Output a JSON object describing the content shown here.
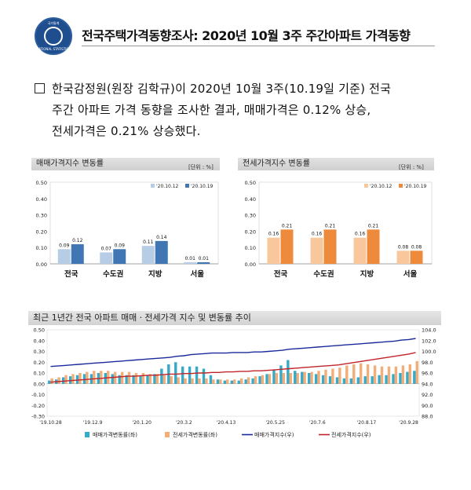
{
  "header": {
    "title": "전국주택가격동향조사: 2020년 10월 3주 주간아파트 가격동향",
    "logo_text_top": "국가통계",
    "logo_text_bottom": "NATIONAL STATISTICS"
  },
  "summary": {
    "line1": "한국감정원(원장 김학규)이 2020년 10월 3주(10.19일 기준) 전국",
    "line2": "주간 아파트 가격 동향을 조사한 결과, 매매가격은 0.12% 상승,",
    "line3": "전세가격은 0.21% 상승했다."
  },
  "colors": {
    "sale_light": "#b7cde6",
    "sale_dark": "#3f76b3",
    "jeonse_light": "#f8c89c",
    "jeonse_dark": "#ee8a3c",
    "sale_index": "#1a2a9c",
    "jeonse_index": "#c0242a",
    "sale_rate_bar": "#36aac9",
    "jeonse_rate_bar": "#f2ad79"
  },
  "chart_data": [
    {
      "type": "bar",
      "title": "매매가격지수 변동률",
      "unit": "[단위 : %]",
      "categories": [
        "전국",
        "수도권",
        "지방",
        "서울"
      ],
      "series": [
        {
          "name": "'20.10.12",
          "values": [
            0.09,
            0.07,
            0.11,
            0.01
          ]
        },
        {
          "name": "'20.10.19",
          "values": [
            0.12,
            0.09,
            0.14,
            0.01
          ]
        }
      ],
      "yticks": [
        "0.00",
        "0.10",
        "0.20",
        "0.30",
        "0.40",
        "0.50"
      ],
      "ylim": [
        0,
        0.5
      ],
      "legend": "top-right"
    },
    {
      "type": "bar",
      "title": "전세가격지수 변동률",
      "unit": "[단위 : %]",
      "categories": [
        "전국",
        "수도권",
        "지방",
        "서울"
      ],
      "series": [
        {
          "name": "'20.10.12",
          "values": [
            0.16,
            0.16,
            0.16,
            0.08
          ]
        },
        {
          "name": "'20.10.19",
          "values": [
            0.21,
            0.21,
            0.21,
            0.08
          ]
        }
      ],
      "yticks": [
        "0.00",
        "0.10",
        "0.20",
        "0.30",
        "0.40",
        "0.50"
      ],
      "ylim": [
        0,
        0.5
      ],
      "legend": "top-right"
    },
    {
      "type": "bar+line",
      "title": "최근 1년간 전국 아파트 매매ㆍ전세가격 지수 및 변동률 추이",
      "x_ticks": [
        "'19.10.28",
        "'19.12.9",
        "'20.1.20",
        "'20.3.2",
        "'20.4.13",
        "'20.5.25",
        "'20.7.6",
        "'20.8.17",
        "'20.9.28"
      ],
      "ylim_left": [
        -0.3,
        0.5
      ],
      "yticks_left": [
        "-0.30",
        "-0.20",
        "-0.10",
        "0.00",
        "0.10",
        "0.20",
        "0.30",
        "0.40",
        "0.50"
      ],
      "ylim_right": [
        88.0,
        104.0
      ],
      "yticks_right": [
        "88.0",
        "90.0",
        "92.0",
        "94.0",
        "96.0",
        "98.0",
        "100.0",
        "102.0",
        "104.0"
      ],
      "legend": "bottom",
      "series": [
        {
          "name": "매매가격변동률(좌)",
          "kind": "bar",
          "axis": "left",
          "values": [
            0.03,
            0.04,
            0.06,
            0.07,
            0.08,
            0.09,
            0.09,
            0.1,
            0.1,
            0.09,
            0.08,
            0.08,
            0.08,
            0.07,
            0.08,
            0.09,
            0.14,
            0.18,
            0.2,
            0.16,
            0.16,
            0.16,
            0.14,
            0.08,
            0.04,
            0.03,
            0.03,
            0.03,
            0.04,
            0.05,
            0.07,
            0.09,
            0.13,
            0.17,
            0.22,
            0.12,
            0.11,
            0.1,
            0.09,
            0.08,
            0.07,
            0.06,
            0.05,
            0.05,
            0.06,
            0.07,
            0.07,
            0.08,
            0.08,
            0.09,
            0.1,
            0.11,
            0.12
          ]
        },
        {
          "name": "전세가격변동률(좌)",
          "kind": "bar",
          "axis": "left",
          "values": [
            0.05,
            0.06,
            0.08,
            0.09,
            0.1,
            0.11,
            0.12,
            0.12,
            0.12,
            0.11,
            0.11,
            0.11,
            0.1,
            0.1,
            0.09,
            0.09,
            0.08,
            0.07,
            0.06,
            0.05,
            0.05,
            0.05,
            0.05,
            0.04,
            0.04,
            0.04,
            0.04,
            0.05,
            0.06,
            0.07,
            0.08,
            0.09,
            0.1,
            0.1,
            0.1,
            0.1,
            0.11,
            0.11,
            0.12,
            0.13,
            0.14,
            0.15,
            0.17,
            0.18,
            0.19,
            0.18,
            0.17,
            0.16,
            0.16,
            0.16,
            0.17,
            0.18,
            0.21
          ]
        },
        {
          "name": "매매가격지수(우)",
          "kind": "line",
          "axis": "right",
          "values": [
            97.2,
            97.3,
            97.4,
            97.5,
            97.6,
            97.7,
            97.8,
            97.9,
            98.0,
            98.1,
            98.2,
            98.3,
            98.4,
            98.5,
            98.6,
            98.7,
            98.8,
            98.9,
            99.1,
            99.2,
            99.4,
            99.5,
            99.6,
            99.7,
            99.7,
            99.7,
            99.8,
            99.8,
            99.8,
            99.9,
            99.9,
            100.0,
            100.1,
            100.2,
            100.4,
            100.5,
            100.6,
            100.7,
            100.8,
            100.9,
            101.0,
            101.1,
            101.2,
            101.3,
            101.4,
            101.5,
            101.6,
            101.7,
            101.8,
            101.9,
            102.1,
            102.2,
            102.4
          ]
        },
        {
          "name": "전세가격지수(우)",
          "kind": "line",
          "axis": "right",
          "values": [
            94.3,
            94.4,
            94.5,
            94.6,
            94.7,
            94.8,
            94.9,
            95.0,
            95.1,
            95.2,
            95.3,
            95.4,
            95.4,
            95.5,
            95.6,
            95.6,
            95.7,
            95.8,
            95.8,
            95.9,
            95.9,
            96.0,
            96.0,
            96.1,
            96.1,
            96.2,
            96.2,
            96.3,
            96.3,
            96.4,
            96.4,
            96.5,
            96.6,
            96.7,
            96.8,
            96.9,
            97.0,
            97.1,
            97.2,
            97.3,
            97.4,
            97.5,
            97.7,
            97.9,
            98.1,
            98.3,
            98.5,
            98.7,
            98.9,
            99.1,
            99.3,
            99.5,
            99.8
          ]
        }
      ]
    }
  ]
}
